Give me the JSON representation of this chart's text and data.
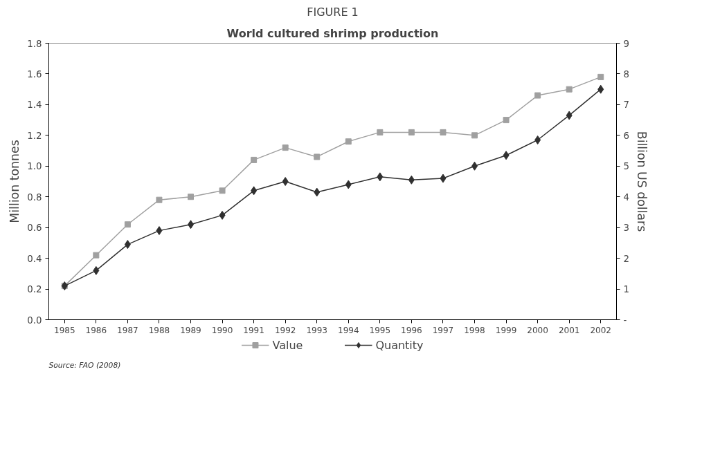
{
  "chart_data": {
    "type": "line",
    "title": "FIGURE 1",
    "subtitle": "World cultured shrimp production",
    "ylabel": "Million tonnes",
    "y2label": "Billion US dollars",
    "categories": [
      "1985",
      "1986",
      "1987",
      "1988",
      "1989",
      "1990",
      "1991",
      "1992",
      "1993",
      "1994",
      "1995",
      "1996",
      "1997",
      "1998",
      "1999",
      "2000",
      "2001",
      "2002"
    ],
    "series": [
      {
        "name": "Value",
        "color": "#a0a0a0",
        "axis": "y2",
        "marker": "square",
        "values": [
          1.1,
          2.1,
          3.1,
          3.9,
          4.0,
          4.2,
          5.2,
          5.6,
          5.3,
          5.8,
          6.1,
          6.1,
          6.1,
          6.0,
          6.5,
          7.3,
          7.5,
          7.9
        ]
      },
      {
        "name": "Quantity",
        "color": "#303030",
        "marker": "diamond",
        "values": [
          0.22,
          0.32,
          0.49,
          0.58,
          0.62,
          0.68,
          0.84,
          0.9,
          0.83,
          0.88,
          0.93,
          0.91,
          0.92,
          1.0,
          1.07,
          1.17,
          1.33,
          1.5
        ]
      }
    ],
    "ylim": [
      0,
      1.8
    ],
    "yticks": [
      {
        "value": 0,
        "label": "0.0"
      },
      0.2,
      0.4,
      0.6,
      0.8,
      {
        "value": 1.0,
        "label": "1.0"
      },
      1.2,
      1.4,
      1.6,
      1.8
    ],
    "y2lim": [
      0,
      9
    ],
    "y2ticks": [
      {
        "value": 0,
        "label": "-"
      },
      1,
      2,
      3,
      4,
      5,
      6,
      7,
      8,
      9
    ],
    "grid": false,
    "legend": "bottom",
    "line_style": "solid",
    "annotations": [
      "Source: FAO (2008)"
    ]
  }
}
